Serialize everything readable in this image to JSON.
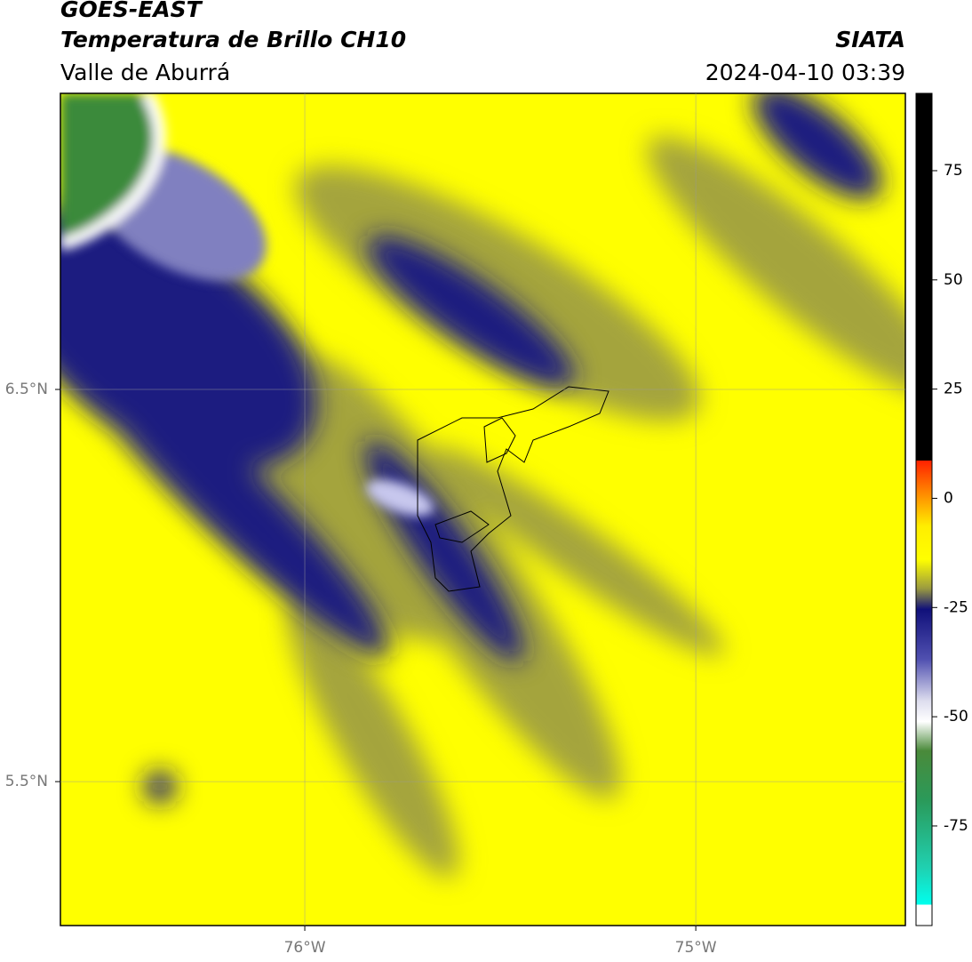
{
  "header": {
    "title": "GOES-EAST",
    "subtitle": "Temperatura de Brillo CH10",
    "region": "Valle de Aburrá",
    "source": "SIATA",
    "datetime": "2024-04-10 03:39"
  },
  "map": {
    "lonlim": [
      -76.625,
      -74.464
    ],
    "latlim": [
      5.133,
      7.255
    ],
    "lon_ticks": [
      {
        "value": -76,
        "label": "76°W"
      },
      {
        "value": -75,
        "label": "75°W"
      }
    ],
    "lat_ticks": [
      {
        "value": 6.5,
        "label": "6.5°N"
      },
      {
        "value": 5.5,
        "label": "5.5°N"
      }
    ]
  },
  "colorbar": {
    "lim": [
      -97.8,
      92.7
    ],
    "ticks": [
      75,
      50,
      25,
      0,
      -25,
      -50,
      -75
    ]
  }
}
